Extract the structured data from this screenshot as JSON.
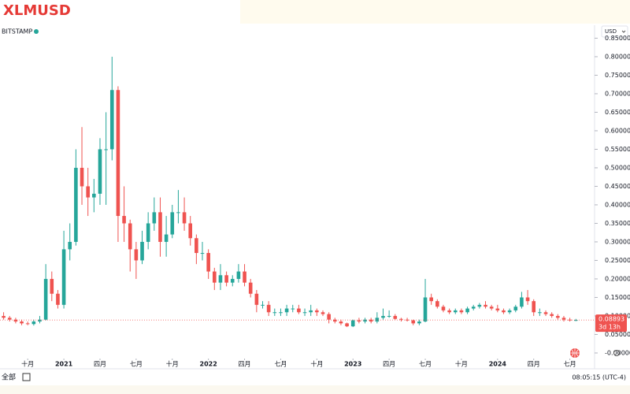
{
  "chart_data": {
    "type": "candlestick",
    "title": "XLMUSD",
    "exchange": "BITSTAMP",
    "currency": "USD",
    "up_color": "#26a69a",
    "down_color": "#ef5350",
    "x": [
      -4,
      -3,
      -2,
      -1,
      0,
      1,
      2,
      3,
      4,
      5,
      6,
      7,
      8,
      9,
      10,
      11,
      12,
      13,
      14,
      15,
      16,
      17,
      18,
      19,
      20,
      21,
      22,
      23,
      24,
      25,
      26,
      27,
      28,
      29,
      30,
      31,
      32,
      33,
      34,
      35,
      36,
      37,
      38,
      39,
      40,
      41,
      42,
      43,
      44,
      45,
      46,
      47,
      48,
      49,
      50,
      51,
      52,
      53,
      54,
      55,
      56,
      57,
      58,
      59,
      60,
      61,
      62,
      63,
      64,
      65,
      66,
      67,
      68,
      69,
      70,
      71,
      72,
      73,
      74,
      75,
      76,
      77,
      78,
      79,
      80,
      81,
      82,
      83,
      84,
      85,
      86,
      87,
      88,
      89,
      90,
      91
    ],
    "open": [
      0.1,
      0.095,
      0.09,
      0.085,
      0.08,
      0.078,
      0.085,
      0.09,
      0.2,
      0.16,
      0.13,
      0.28,
      0.3,
      0.5,
      0.45,
      0.42,
      0.43,
      0.55,
      0.55,
      0.71,
      0.37,
      0.35,
      0.28,
      0.25,
      0.3,
      0.35,
      0.38,
      0.3,
      0.32,
      0.38,
      0.38,
      0.35,
      0.31,
      0.27,
      0.27,
      0.22,
      0.19,
      0.21,
      0.19,
      0.2,
      0.22,
      0.19,
      0.16,
      0.13,
      0.13,
      0.11,
      0.11,
      0.11,
      0.12,
      0.12,
      0.11,
      0.11,
      0.115,
      0.11,
      0.105,
      0.09,
      0.085,
      0.08,
      0.072,
      0.088,
      0.085,
      0.09,
      0.085,
      0.095,
      0.1,
      0.1,
      0.092,
      0.09,
      0.088,
      0.08,
      0.085,
      0.15,
      0.14,
      0.125,
      0.115,
      0.11,
      0.115,
      0.11,
      0.12,
      0.125,
      0.13,
      0.125,
      0.12,
      0.115,
      0.11,
      0.115,
      0.125,
      0.15,
      0.14,
      0.11,
      0.11,
      0.105,
      0.1,
      0.095,
      0.09,
      0.088
    ],
    "high": [
      0.11,
      0.1,
      0.095,
      0.09,
      0.085,
      0.09,
      0.1,
      0.24,
      0.22,
      0.17,
      0.33,
      0.35,
      0.55,
      0.61,
      0.5,
      0.47,
      0.58,
      0.65,
      0.8,
      0.72,
      0.45,
      0.36,
      0.3,
      0.33,
      0.38,
      0.42,
      0.42,
      0.37,
      0.4,
      0.44,
      0.42,
      0.37,
      0.32,
      0.3,
      0.28,
      0.23,
      0.24,
      0.22,
      0.21,
      0.24,
      0.24,
      0.2,
      0.17,
      0.14,
      0.14,
      0.12,
      0.12,
      0.13,
      0.13,
      0.13,
      0.12,
      0.13,
      0.12,
      0.115,
      0.11,
      0.095,
      0.09,
      0.082,
      0.09,
      0.095,
      0.095,
      0.095,
      0.11,
      0.12,
      0.115,
      0.105,
      0.095,
      0.095,
      0.09,
      0.09,
      0.2,
      0.16,
      0.145,
      0.13,
      0.12,
      0.12,
      0.12,
      0.125,
      0.13,
      0.135,
      0.14,
      0.13,
      0.13,
      0.12,
      0.12,
      0.13,
      0.165,
      0.17,
      0.145,
      0.12,
      0.115,
      0.11,
      0.105,
      0.1,
      0.095,
      0.092
    ],
    "low": [
      0.09,
      0.085,
      0.08,
      0.075,
      0.075,
      0.074,
      0.08,
      0.088,
      0.14,
      0.12,
      0.12,
      0.25,
      0.29,
      0.4,
      0.37,
      0.38,
      0.4,
      0.4,
      0.52,
      0.3,
      0.3,
      0.22,
      0.2,
      0.24,
      0.28,
      0.33,
      0.26,
      0.26,
      0.31,
      0.35,
      0.33,
      0.29,
      0.24,
      0.25,
      0.2,
      0.17,
      0.17,
      0.18,
      0.18,
      0.19,
      0.18,
      0.15,
      0.11,
      0.12,
      0.1,
      0.1,
      0.1,
      0.1,
      0.11,
      0.105,
      0.1,
      0.1,
      0.1,
      0.1,
      0.08,
      0.08,
      0.075,
      0.07,
      0.07,
      0.08,
      0.08,
      0.08,
      0.08,
      0.09,
      0.095,
      0.09,
      0.085,
      0.085,
      0.075,
      0.075,
      0.083,
      0.13,
      0.12,
      0.11,
      0.105,
      0.105,
      0.105,
      0.105,
      0.115,
      0.12,
      0.12,
      0.115,
      0.11,
      0.105,
      0.105,
      0.11,
      0.12,
      0.13,
      0.1,
      0.1,
      0.1,
      0.095,
      0.09,
      0.085,
      0.085,
      0.086
    ],
    "close": [
      0.095,
      0.09,
      0.085,
      0.08,
      0.078,
      0.085,
      0.09,
      0.2,
      0.16,
      0.13,
      0.28,
      0.3,
      0.5,
      0.45,
      0.42,
      0.43,
      0.55,
      0.55,
      0.71,
      0.37,
      0.35,
      0.28,
      0.25,
      0.3,
      0.35,
      0.38,
      0.3,
      0.32,
      0.38,
      0.38,
      0.35,
      0.31,
      0.27,
      0.27,
      0.22,
      0.19,
      0.21,
      0.19,
      0.2,
      0.22,
      0.19,
      0.16,
      0.13,
      0.13,
      0.11,
      0.11,
      0.11,
      0.12,
      0.12,
      0.11,
      0.11,
      0.115,
      0.11,
      0.105,
      0.09,
      0.085,
      0.08,
      0.072,
      0.088,
      0.085,
      0.09,
      0.085,
      0.095,
      0.1,
      0.1,
      0.092,
      0.09,
      0.088,
      0.08,
      0.085,
      0.15,
      0.14,
      0.125,
      0.115,
      0.11,
      0.115,
      0.11,
      0.12,
      0.125,
      0.13,
      0.125,
      0.12,
      0.115,
      0.11,
      0.115,
      0.125,
      0.15,
      0.14,
      0.11,
      0.11,
      0.105,
      0.1,
      0.095,
      0.09,
      0.088,
      0.08893
    ],
    "xlim": [
      -4.6,
      93.45
    ],
    "xticks": [
      {
        "value": 0,
        "label": "十月"
      },
      {
        "value": 6,
        "label": "2021"
      },
      {
        "value": 12,
        "label": "四月"
      },
      {
        "value": 18,
        "label": "七月"
      },
      {
        "value": 24,
        "label": "十月"
      },
      {
        "value": 30,
        "label": "2022"
      },
      {
        "value": 36,
        "label": "四月"
      },
      {
        "value": 42,
        "label": "七月"
      },
      {
        "value": 48,
        "label": "十月"
      },
      {
        "value": 54,
        "label": "2023"
      },
      {
        "value": 60,
        "label": "四月"
      },
      {
        "value": 66,
        "label": "七月"
      },
      {
        "value": 72,
        "label": "十月"
      },
      {
        "value": 78,
        "label": "2024"
      },
      {
        "value": 84,
        "label": "四月"
      },
      {
        "value": 90,
        "label": "七月"
      }
    ],
    "ylim": [
      -0.015,
      0.885
    ],
    "yticks": [
      {
        "value": 0,
        "label": "-0.00000"
      },
      {
        "value": 0.05,
        "label": "0.05000"
      },
      {
        "value": 0.1,
        "label": "0.10000"
      },
      {
        "value": 0.15,
        "label": "0.15000"
      },
      {
        "value": 0.2,
        "label": "0.20000"
      },
      {
        "value": 0.25,
        "label": "0.25000"
      },
      {
        "value": 0.3,
        "label": "0.30000"
      },
      {
        "value": 0.35,
        "label": "0.35000"
      },
      {
        "value": 0.4,
        "label": "0.40000"
      },
      {
        "value": 0.45,
        "label": "0.45000"
      },
      {
        "value": 0.5,
        "label": "0.50000"
      },
      {
        "value": 0.55,
        "label": "0.55000"
      },
      {
        "value": 0.6,
        "label": "0.60000"
      },
      {
        "value": 0.65,
        "label": "0.65000"
      },
      {
        "value": 0.7,
        "label": "0.70000"
      },
      {
        "value": 0.75,
        "label": "0.75000"
      },
      {
        "value": 0.8,
        "label": "0.80000"
      },
      {
        "value": 0.85,
        "label": "0.85000"
      }
    ],
    "last_price": 0.08893,
    "countdown": "3d 13h",
    "range_button": "全部",
    "clock": "08:05:15 (UTC-4)"
  }
}
